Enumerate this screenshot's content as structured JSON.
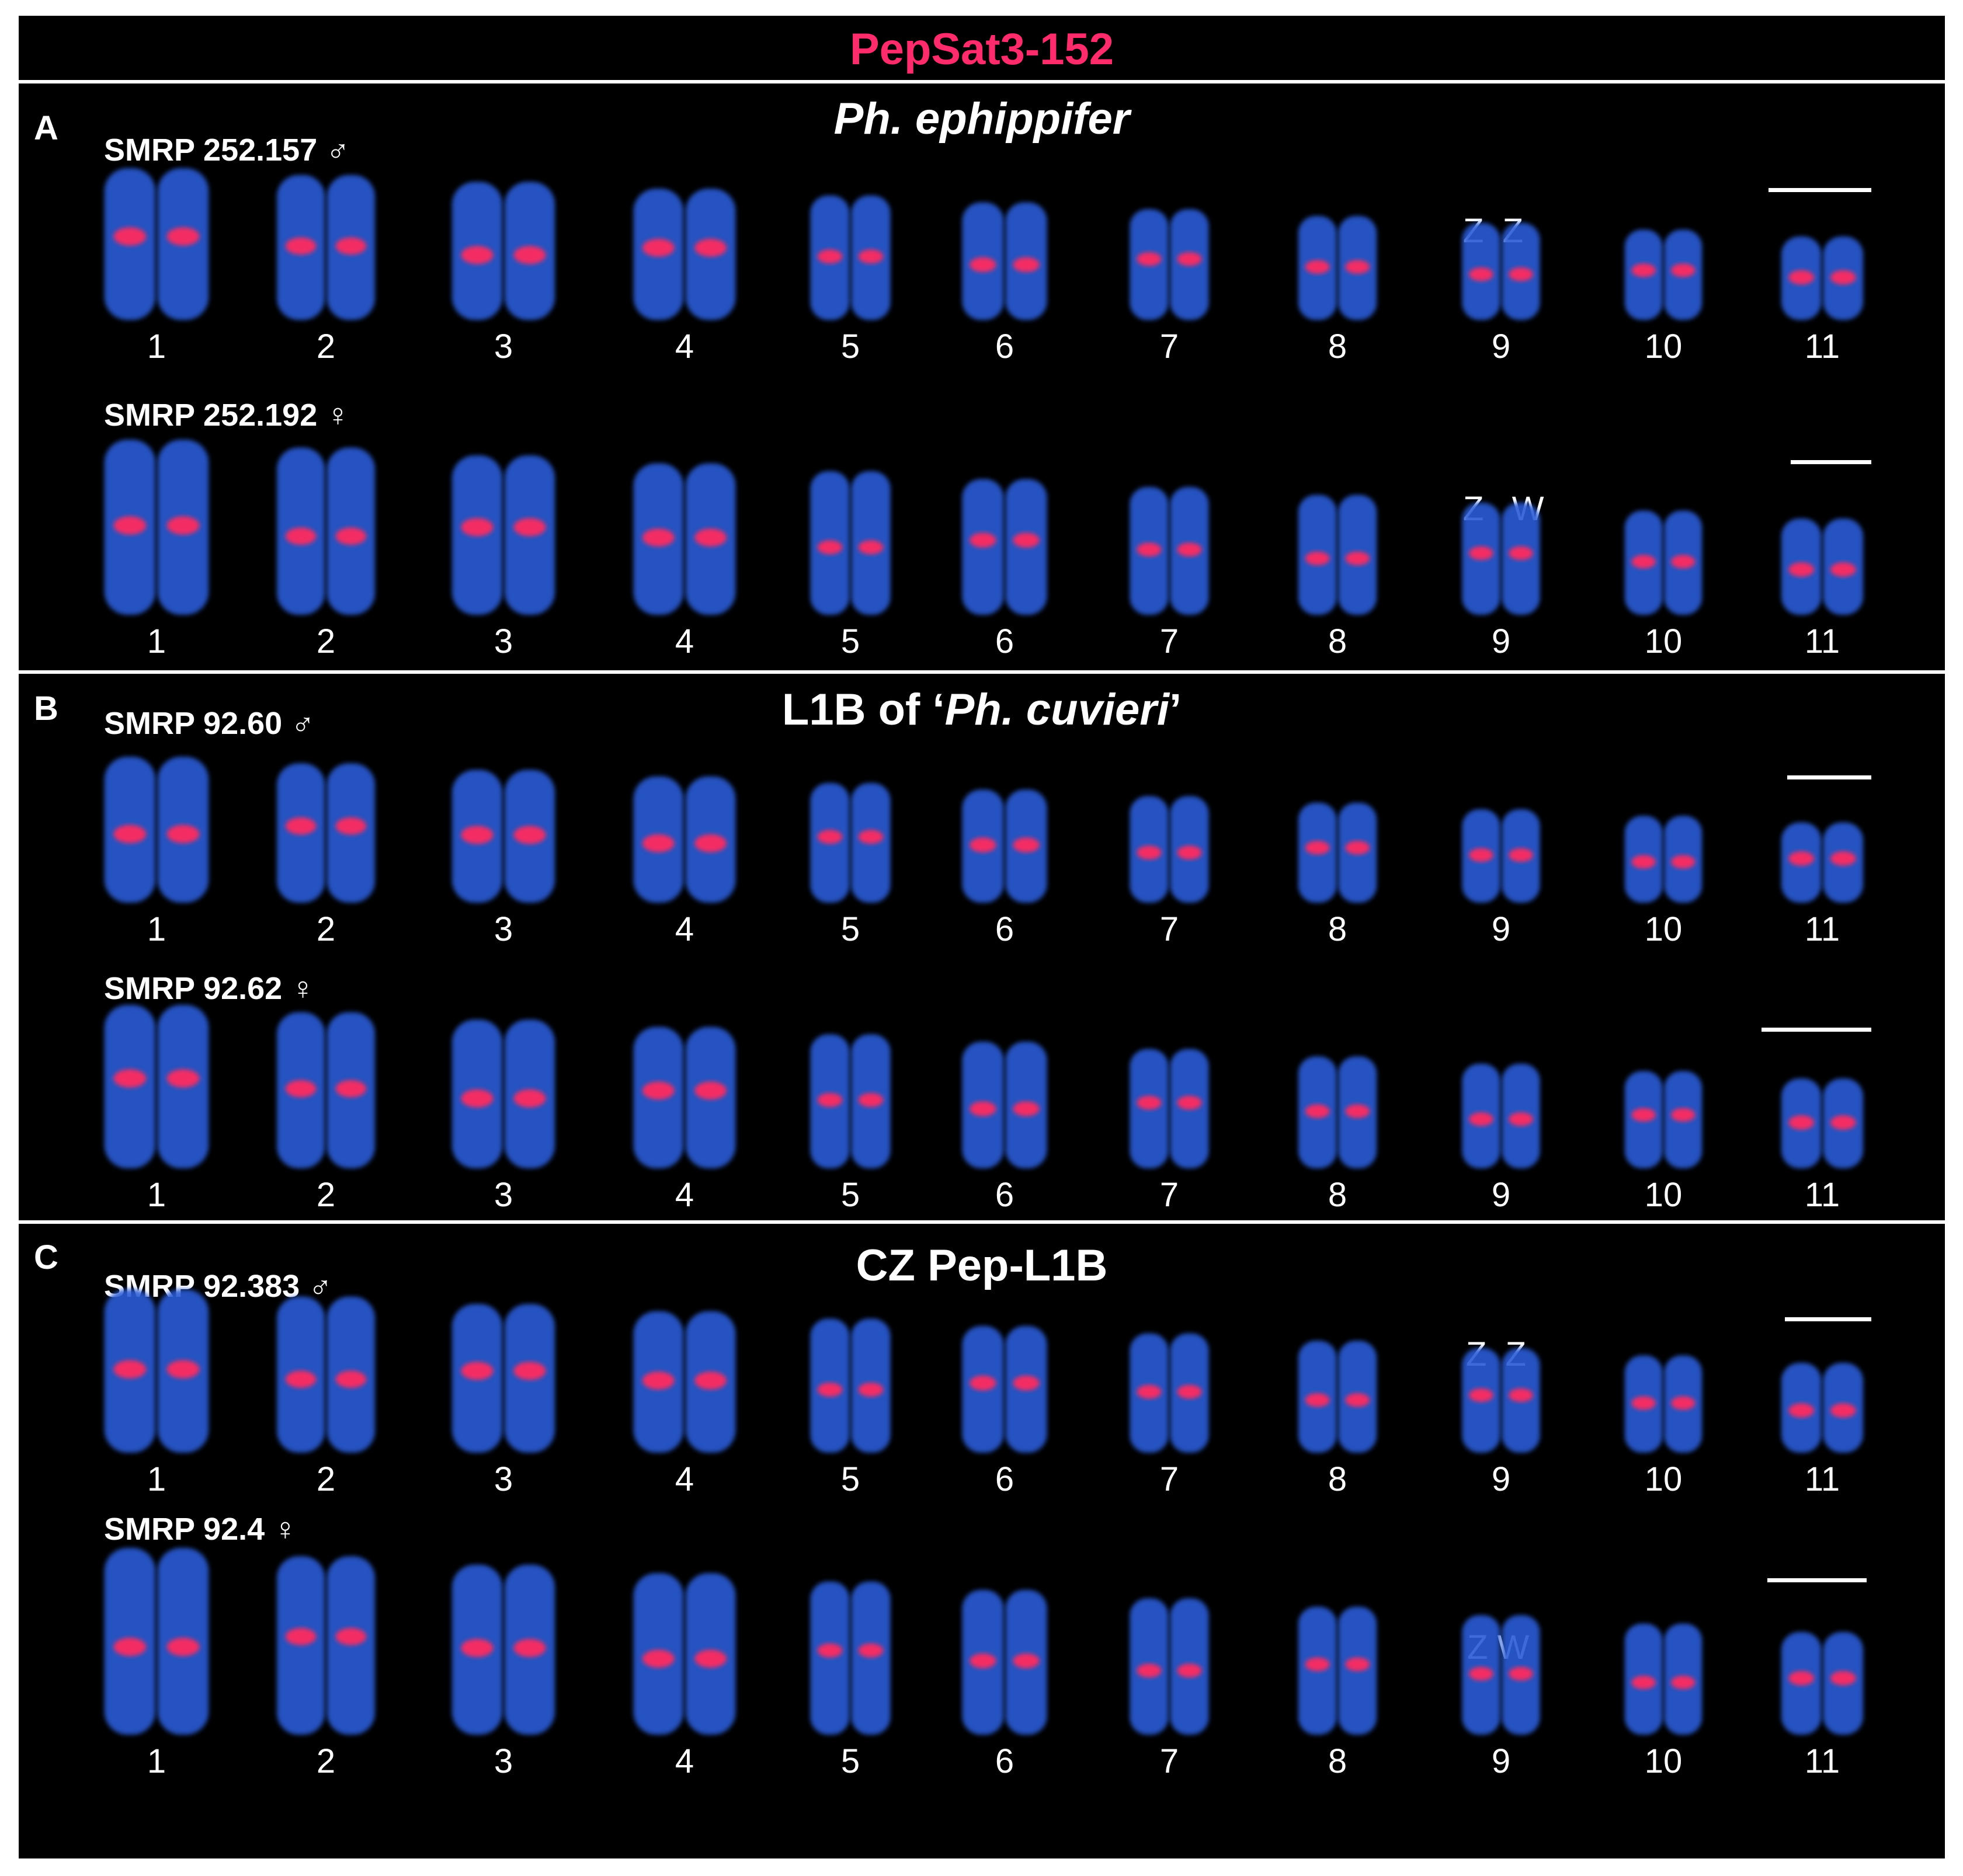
{
  "figure_title": "PepSat3-152",
  "colors": {
    "title": "#ff2b6a",
    "background": "#000000",
    "frame": "#ffffff",
    "chromatin": "#2a5cd6",
    "signal": "#ff2a5e"
  },
  "chromosome_labels": [
    "1",
    "2",
    "3",
    "4",
    "5",
    "6",
    "7",
    "8",
    "9",
    "10",
    "11"
  ],
  "panels": [
    {
      "letter": "A",
      "title": "Ph. ephippifer",
      "rows": [
        {
          "specimen": "SMRP 252.157",
          "sex_symbol": "♂",
          "sex_chromosomes": "Z  Z"
        },
        {
          "specimen": "SMRP 252.192",
          "sex_symbol": "♀",
          "sex_chromosomes": "Z   W"
        }
      ]
    },
    {
      "letter": "B",
      "title_prefix": "L1B of ‘",
      "title_italic": "Ph. cuvieri",
      "title_suffix": "’",
      "rows": [
        {
          "specimen": "SMRP 92.60",
          "sex_symbol": "♂",
          "sex_chromosomes": ""
        },
        {
          "specimen": "SMRP 92.62",
          "sex_symbol": "♀",
          "sex_chromosomes": ""
        }
      ]
    },
    {
      "letter": "C",
      "title": "CZ Pep-L1B",
      "rows": [
        {
          "specimen": "SMRP 92.383",
          "sex_symbol": "♂",
          "sex_chromosomes": "Z  Z"
        },
        {
          "specimen": "SMRP 92.4",
          "sex_symbol": "♀",
          "sex_chromosomes": "Z W"
        }
      ]
    }
  ]
}
